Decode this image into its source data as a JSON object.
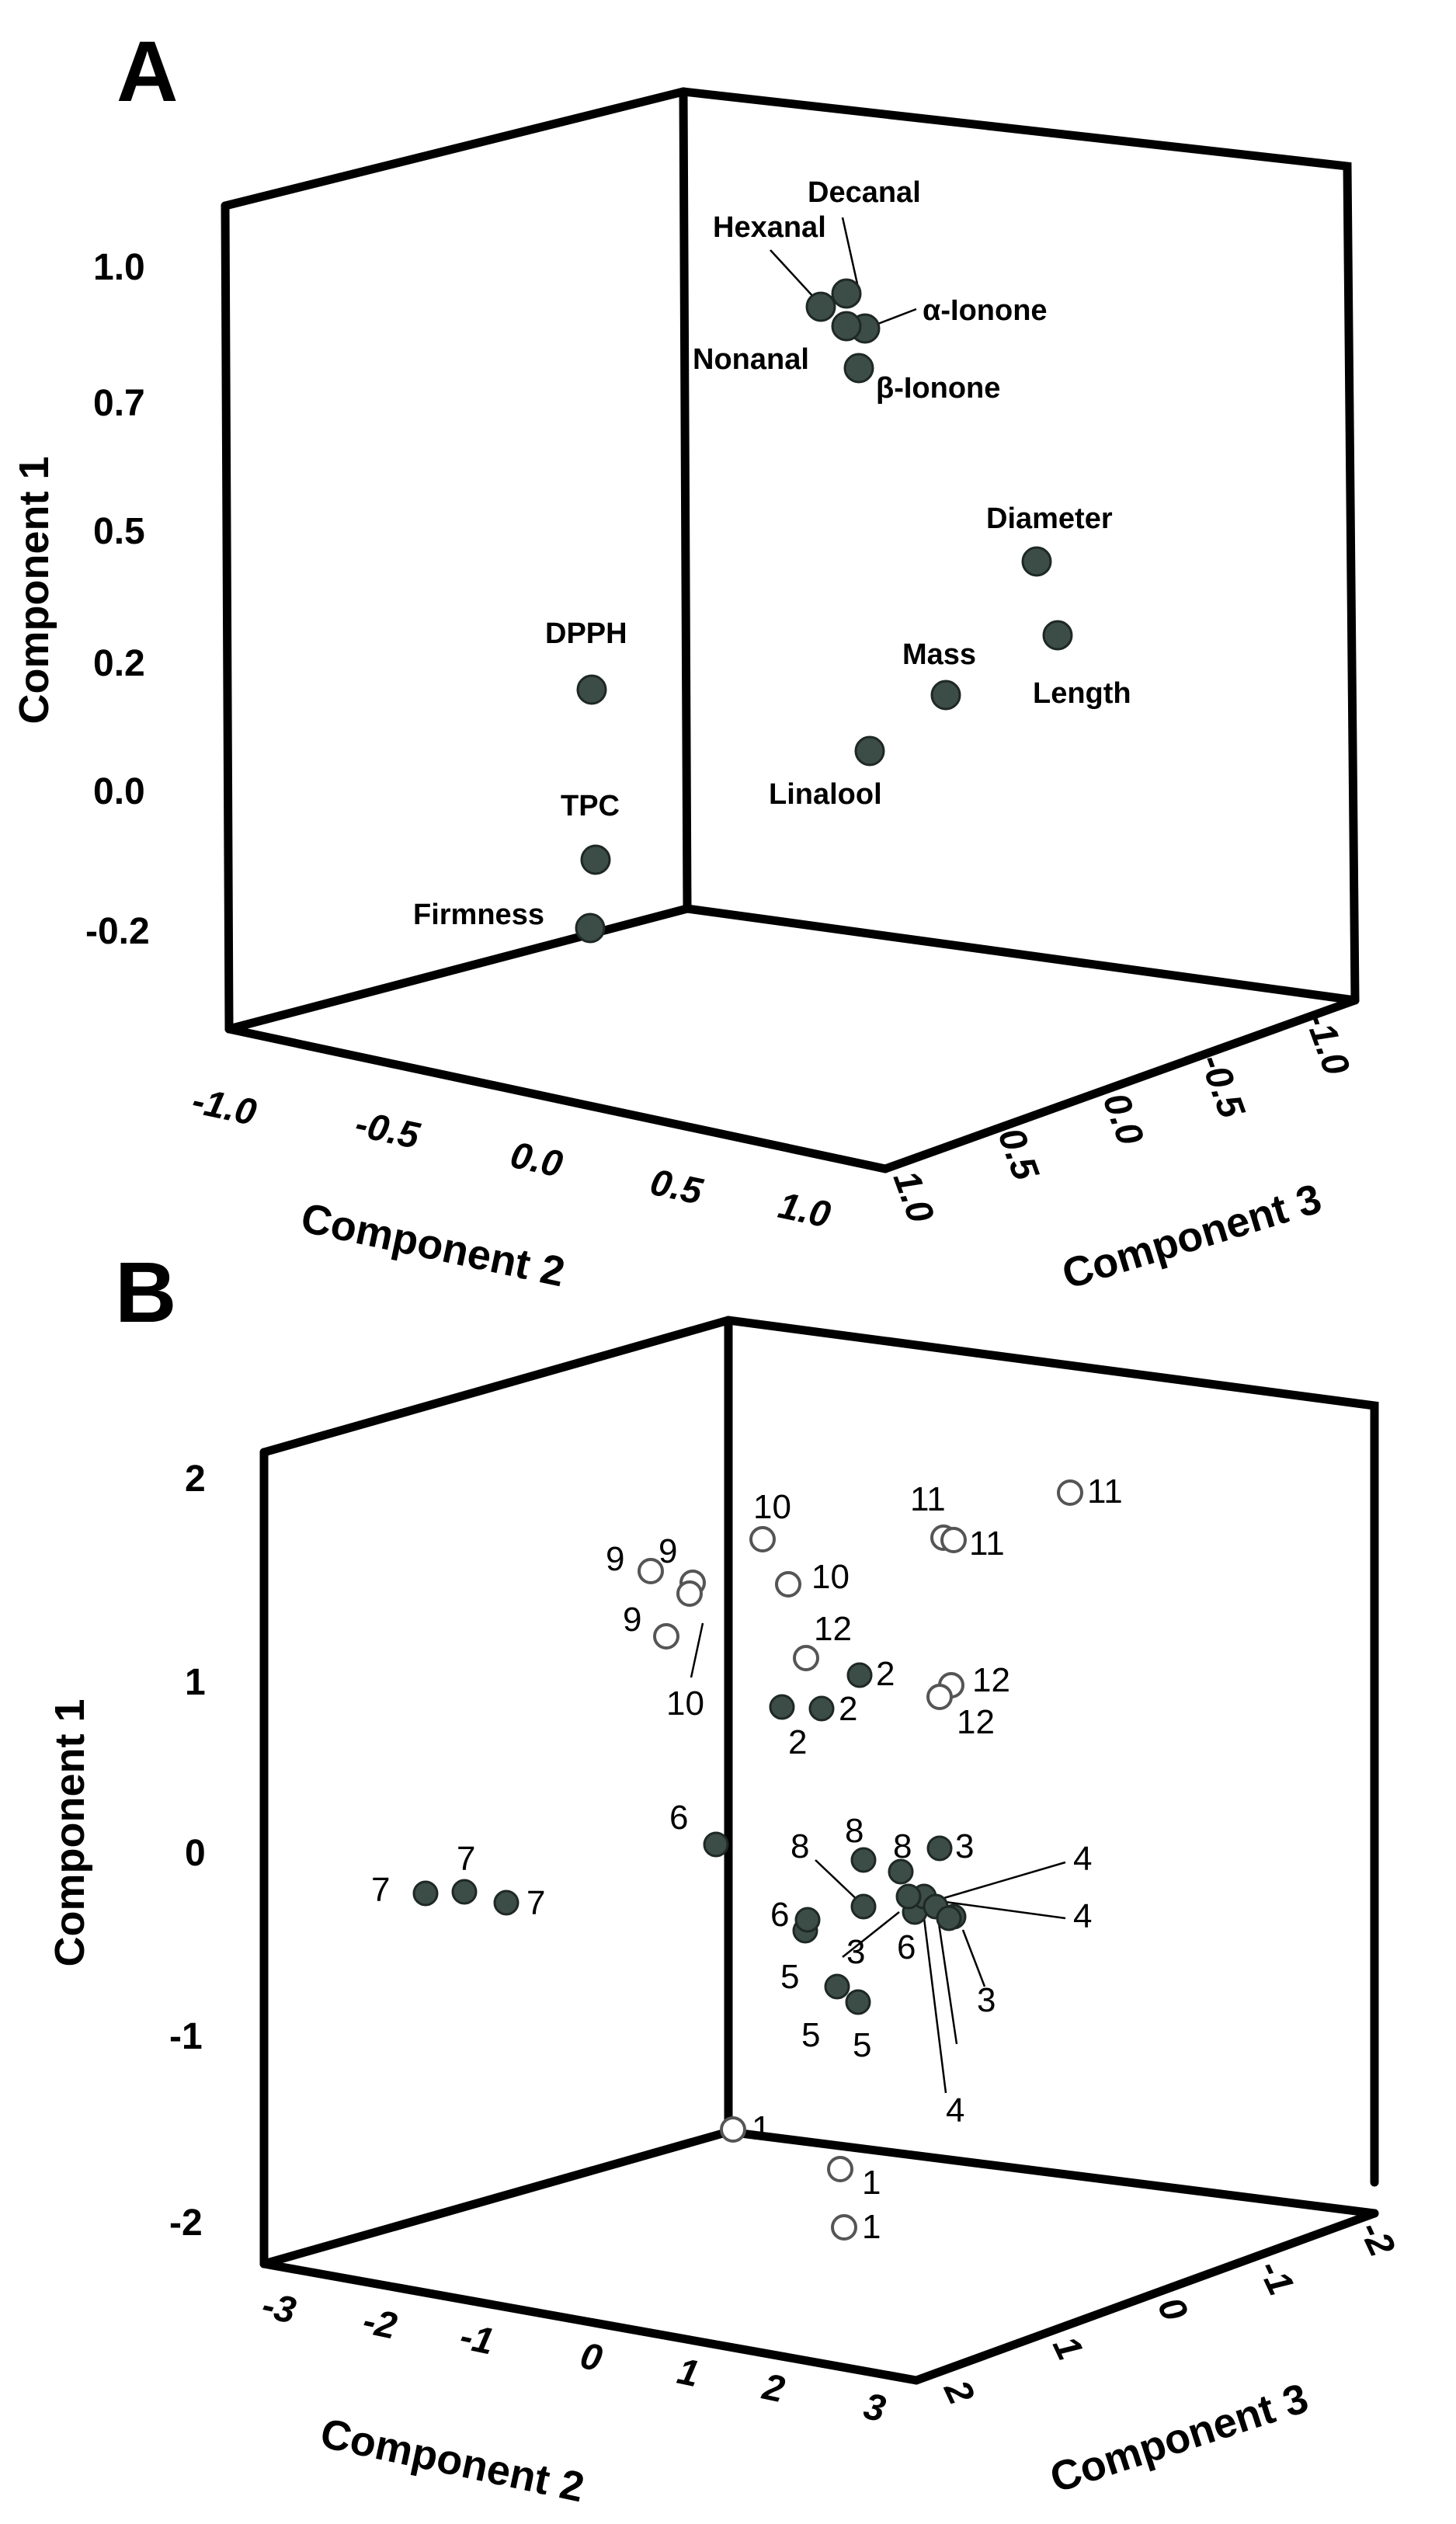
{
  "colors": {
    "filled": "#3c4c46",
    "filled_stroke": "#1e2824",
    "open_fill": "#ffffff",
    "open_stroke": "#555555",
    "axis": "#000000"
  },
  "chart_data": [
    {
      "panel": "A",
      "type": "scatter",
      "subtype": "3d-loading-plot",
      "xlabel": "Component 2",
      "ylabel": "Component 1",
      "zlabel": "Component 3",
      "y_ticks": [
        "1.0",
        "0.7",
        "0.5",
        "0.2",
        "0.0",
        "-0.2"
      ],
      "x_ticks": [
        "-1.0",
        "-0.5",
        "0.0",
        "0.5",
        "1.0"
      ],
      "z_ticks": [
        "1.0",
        "0.5",
        "0.0",
        "-0.5",
        "-1.0"
      ],
      "points": [
        {
          "label": "Decanal",
          "x": 0.46,
          "y": 0.96,
          "z": 0.93
        },
        {
          "label": "Hexanal",
          "x": 0.38,
          "y": 0.93,
          "z": 0.95
        },
        {
          "label": "α-Ionone",
          "x": 0.54,
          "y": 0.9,
          "z": 0.92
        },
        {
          "label": "Nonanal",
          "x": 0.44,
          "y": 0.89,
          "z": 0.95
        },
        {
          "label": "β-Ionone",
          "x": 0.48,
          "y": 0.83,
          "z": 0.95
        },
        {
          "label": "Diameter",
          "x": 1.0,
          "y": 0.5,
          "z": 0.36
        },
        {
          "label": "Length",
          "x": 1.0,
          "y": 0.33,
          "z": 0.24
        },
        {
          "label": "Mass",
          "x": 0.95,
          "y": 0.15,
          "z": 0.62
        },
        {
          "label": "Linalool",
          "x": 0.92,
          "y": 0.05,
          "z": 0.93
        },
        {
          "label": "DPPH",
          "x": 0.12,
          "y": 0.13,
          "z": 1.0
        },
        {
          "label": "TPC",
          "x": 0.12,
          "y": -0.12,
          "z": 1.0
        },
        {
          "label": "Firmness",
          "x": 0.12,
          "y": -0.22,
          "z": 0.95
        }
      ]
    },
    {
      "panel": "B",
      "type": "scatter",
      "subtype": "3d-score-plot",
      "xlabel": "Component 2",
      "ylabel": "Component 1",
      "zlabel": "Component 3",
      "y_ticks": [
        "2",
        "1",
        "0",
        "-1",
        "-2"
      ],
      "x_ticks": [
        "-3",
        "-2",
        "-1",
        "0",
        "1",
        "2",
        "3"
      ],
      "z_ticks": [
        "2",
        "1",
        "0",
        "-1",
        "-2"
      ],
      "points": [
        {
          "label": "11",
          "x": 2.7,
          "y": 1.8,
          "z": -1.5,
          "filled": false
        },
        {
          "label": "11",
          "x": 1.4,
          "y": 1.7,
          "z": -0.6,
          "filled": false
        },
        {
          "label": "11",
          "x": 1.5,
          "y": 1.6,
          "z": -0.6,
          "filled": false
        },
        {
          "label": "10",
          "x": 0.0,
          "y": 1.6,
          "z": -0.2,
          "filled": false
        },
        {
          "label": "10",
          "x": 0.2,
          "y": 1.4,
          "z": 0.1,
          "filled": false
        },
        {
          "label": "10",
          "x": -0.8,
          "y": 1.3,
          "z": 0.0,
          "filled": false
        },
        {
          "label": "9",
          "x": -1.2,
          "y": 1.4,
          "z": -0.2,
          "filled": false
        },
        {
          "label": "9",
          "x": -0.9,
          "y": 1.3,
          "z": 0.0,
          "filled": false
        },
        {
          "label": "9",
          "x": -1.1,
          "y": 1.1,
          "z": 0.2,
          "filled": false
        },
        {
          "label": "12",
          "x": 0.5,
          "y": 1.0,
          "z": 0.3,
          "filled": false
        },
        {
          "label": "12",
          "x": 1.5,
          "y": 0.8,
          "z": -0.3,
          "filled": false
        },
        {
          "label": "12",
          "x": 1.4,
          "y": 0.7,
          "z": -0.3,
          "filled": false
        },
        {
          "label": "2",
          "x": 0.7,
          "y": 0.9,
          "z": 0.5,
          "filled": true
        },
        {
          "label": "2",
          "x": 0.3,
          "y": 0.7,
          "z": 0.6,
          "filled": true
        },
        {
          "label": "2",
          "x": 0.6,
          "y": 0.7,
          "z": 0.6,
          "filled": true
        },
        {
          "label": "6",
          "x": -1.0,
          "y": 0.0,
          "z": 1.0,
          "filled": true
        },
        {
          "label": "6",
          "x": 0.4,
          "y": -0.5,
          "z": 1.2,
          "filled": true
        },
        {
          "label": "6",
          "x": 1.3,
          "y": -0.4,
          "z": 0.2,
          "filled": true
        },
        {
          "label": "8",
          "x": 0.9,
          "y": -0.3,
          "z": 0.9,
          "filled": true
        },
        {
          "label": "8",
          "x": 0.9,
          "y": -0.1,
          "z": 0.8,
          "filled": true
        },
        {
          "label": "8",
          "x": 1.3,
          "y": -0.2,
          "z": 0.5,
          "filled": true
        },
        {
          "label": "3",
          "x": 1.5,
          "y": 0.0,
          "z": 0.2,
          "filled": true
        },
        {
          "label": "3",
          "x": 1.6,
          "y": -0.3,
          "z": 0.3,
          "filled": true
        },
        {
          "label": "3",
          "x": 1.8,
          "y": -0.4,
          "z": 0.1,
          "filled": true
        },
        {
          "label": "4",
          "x": 1.7,
          "y": -0.3,
          "z": 0.1,
          "filled": true
        },
        {
          "label": "4",
          "x": 1.9,
          "y": -0.3,
          "z": 0.2,
          "filled": true
        },
        {
          "label": "4",
          "x": 1.6,
          "y": -0.4,
          "z": 0.3,
          "filled": true
        },
        {
          "label": "5",
          "x": 0.3,
          "y": -0.4,
          "z": 1.3,
          "filled": true
        },
        {
          "label": "5",
          "x": 0.6,
          "y": -0.8,
          "z": 1.4,
          "filled": true
        },
        {
          "label": "5",
          "x": 0.7,
          "y": -0.9,
          "z": 1.4,
          "filled": true
        },
        {
          "label": "7",
          "x": -2.2,
          "y": -0.3,
          "z": 2.0,
          "filled": true
        },
        {
          "label": "7",
          "x": -2.0,
          "y": -0.3,
          "z": 2.0,
          "filled": true
        },
        {
          "label": "7",
          "x": -1.8,
          "y": -0.4,
          "z": 2.0,
          "filled": true
        },
        {
          "label": "1",
          "x": -0.5,
          "y": -1.4,
          "z": 1.9,
          "filled": false
        },
        {
          "label": "1",
          "x": 0.4,
          "y": -1.6,
          "z": 2.0,
          "filled": false
        },
        {
          "label": "1",
          "x": 0.5,
          "y": -2.0,
          "z": 2.0,
          "filled": false
        }
      ]
    }
  ]
}
